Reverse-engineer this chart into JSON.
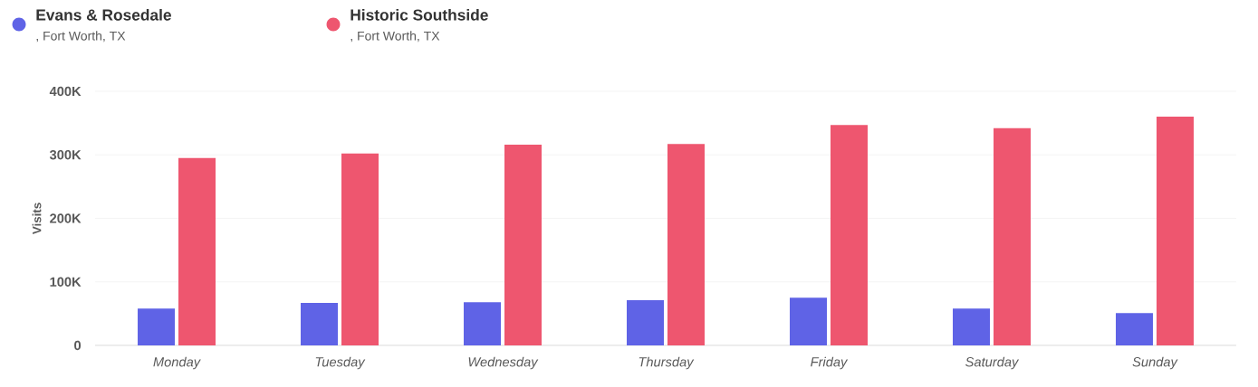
{
  "chart_data": {
    "type": "bar",
    "ylabel": "Visits",
    "categories": [
      "Monday",
      "Tuesday",
      "Wednesday",
      "Thursday",
      "Friday",
      "Saturday",
      "Sunday"
    ],
    "series": [
      {
        "name": "Evans & Rosedale",
        "color": "#5f63e6",
        "values": [
          58000,
          67000,
          68000,
          71000,
          75000,
          58000,
          51000
        ]
      },
      {
        "name": "Historic Southside",
        "color": "#ee566f",
        "values": [
          295000,
          302000,
          316000,
          317000,
          347000,
          342000,
          360000
        ]
      }
    ],
    "annotations": [
      ", Fort Worth, TX",
      ", Fort Worth, TX"
    ],
    "ylim": [
      0,
      400000
    ],
    "yticks": [
      0,
      {
        "value": 100000,
        "label": "100K"
      },
      {
        "value": 200000,
        "label": "200K"
      },
      {
        "value": 300000,
        "label": "300K"
      },
      {
        "value": 400000,
        "label": "400K"
      }
    ],
    "grid": "y",
    "legend": "top left"
  }
}
